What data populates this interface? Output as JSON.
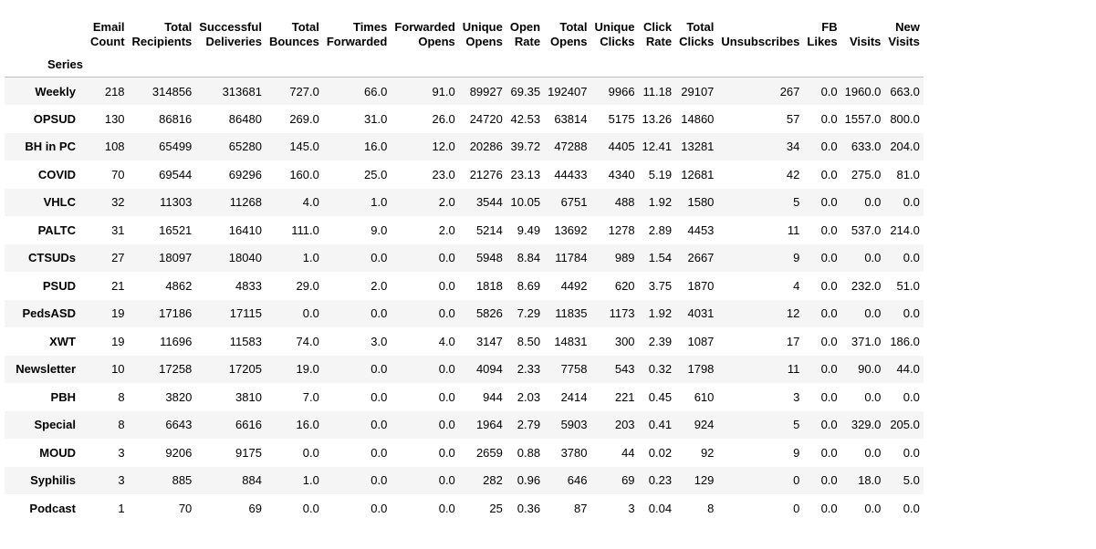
{
  "index_name": "Series",
  "columns": [
    "Email\nCount",
    "Total\nRecipients",
    "Successful\nDeliveries",
    "Total\nBounces",
    "Times\nForwarded",
    "Forwarded\nOpens",
    "Unique\nOpens",
    "Open\nRate",
    "Total\nOpens",
    "Unique\nClicks",
    "Click\nRate",
    "Total\nClicks",
    "Unsubscribes",
    "FB\nLikes",
    "Visits",
    "New\nVisits"
  ],
  "rows": [
    {
      "series": "Weekly",
      "values": [
        "218",
        "314856",
        "313681",
        "727.0",
        "66.0",
        "91.0",
        "89927",
        "69.35",
        "192407",
        "9966",
        "11.18",
        "29107",
        "267",
        "0.0",
        "1960.0",
        "663.0"
      ]
    },
    {
      "series": "OPSUD",
      "values": [
        "130",
        "86816",
        "86480",
        "269.0",
        "31.0",
        "26.0",
        "24720",
        "42.53",
        "63814",
        "5175",
        "13.26",
        "14860",
        "57",
        "0.0",
        "1557.0",
        "800.0"
      ]
    },
    {
      "series": "BH in PC",
      "values": [
        "108",
        "65499",
        "65280",
        "145.0",
        "16.0",
        "12.0",
        "20286",
        "39.72",
        "47288",
        "4405",
        "12.41",
        "13281",
        "34",
        "0.0",
        "633.0",
        "204.0"
      ]
    },
    {
      "series": "COVID",
      "values": [
        "70",
        "69544",
        "69296",
        "160.0",
        "25.0",
        "23.0",
        "21276",
        "23.13",
        "44433",
        "4340",
        "5.19",
        "12681",
        "42",
        "0.0",
        "275.0",
        "81.0"
      ]
    },
    {
      "series": "VHLC",
      "values": [
        "32",
        "11303",
        "11268",
        "4.0",
        "1.0",
        "2.0",
        "3544",
        "10.05",
        "6751",
        "488",
        "1.92",
        "1580",
        "5",
        "0.0",
        "0.0",
        "0.0"
      ]
    },
    {
      "series": "PALTC",
      "values": [
        "31",
        "16521",
        "16410",
        "111.0",
        "9.0",
        "2.0",
        "5214",
        "9.49",
        "13692",
        "1278",
        "2.89",
        "4453",
        "11",
        "0.0",
        "537.0",
        "214.0"
      ]
    },
    {
      "series": "CTSUDs",
      "values": [
        "27",
        "18097",
        "18040",
        "1.0",
        "0.0",
        "0.0",
        "5948",
        "8.84",
        "11784",
        "989",
        "1.54",
        "2667",
        "9",
        "0.0",
        "0.0",
        "0.0"
      ]
    },
    {
      "series": "PSUD",
      "values": [
        "21",
        "4862",
        "4833",
        "29.0",
        "2.0",
        "0.0",
        "1818",
        "8.69",
        "4492",
        "620",
        "3.75",
        "1870",
        "4",
        "0.0",
        "232.0",
        "51.0"
      ]
    },
    {
      "series": "PedsASD",
      "values": [
        "19",
        "17186",
        "17115",
        "0.0",
        "0.0",
        "0.0",
        "5826",
        "7.29",
        "11835",
        "1173",
        "1.92",
        "4031",
        "12",
        "0.0",
        "0.0",
        "0.0"
      ]
    },
    {
      "series": "XWT",
      "values": [
        "19",
        "11696",
        "11583",
        "74.0",
        "3.0",
        "4.0",
        "3147",
        "8.50",
        "14831",
        "300",
        "2.39",
        "1087",
        "17",
        "0.0",
        "371.0",
        "186.0"
      ]
    },
    {
      "series": "Newsletter",
      "values": [
        "10",
        "17258",
        "17205",
        "19.0",
        "0.0",
        "0.0",
        "4094",
        "2.33",
        "7758",
        "543",
        "0.32",
        "1798",
        "11",
        "0.0",
        "90.0",
        "44.0"
      ]
    },
    {
      "series": "PBH",
      "values": [
        "8",
        "3820",
        "3810",
        "7.0",
        "0.0",
        "0.0",
        "944",
        "2.03",
        "2414",
        "221",
        "0.45",
        "610",
        "3",
        "0.0",
        "0.0",
        "0.0"
      ]
    },
    {
      "series": "Special",
      "values": [
        "8",
        "6643",
        "6616",
        "16.0",
        "0.0",
        "0.0",
        "1964",
        "2.79",
        "5903",
        "203",
        "0.41",
        "924",
        "5",
        "0.0",
        "329.0",
        "205.0"
      ]
    },
    {
      "series": "MOUD",
      "values": [
        "3",
        "9206",
        "9175",
        "0.0",
        "0.0",
        "0.0",
        "2659",
        "0.88",
        "3780",
        "44",
        "0.02",
        "92",
        "9",
        "0.0",
        "0.0",
        "0.0"
      ]
    },
    {
      "series": "Syphilis",
      "values": [
        "3",
        "885",
        "884",
        "1.0",
        "0.0",
        "0.0",
        "282",
        "0.96",
        "646",
        "69",
        "0.23",
        "129",
        "0",
        "0.0",
        "18.0",
        "5.0"
      ]
    },
    {
      "series": "Podcast",
      "values": [
        "1",
        "70",
        "69",
        "0.0",
        "0.0",
        "0.0",
        "25",
        "0.36",
        "87",
        "3",
        "0.04",
        "8",
        "0",
        "0.0",
        "0.0",
        "0.0"
      ]
    }
  ]
}
